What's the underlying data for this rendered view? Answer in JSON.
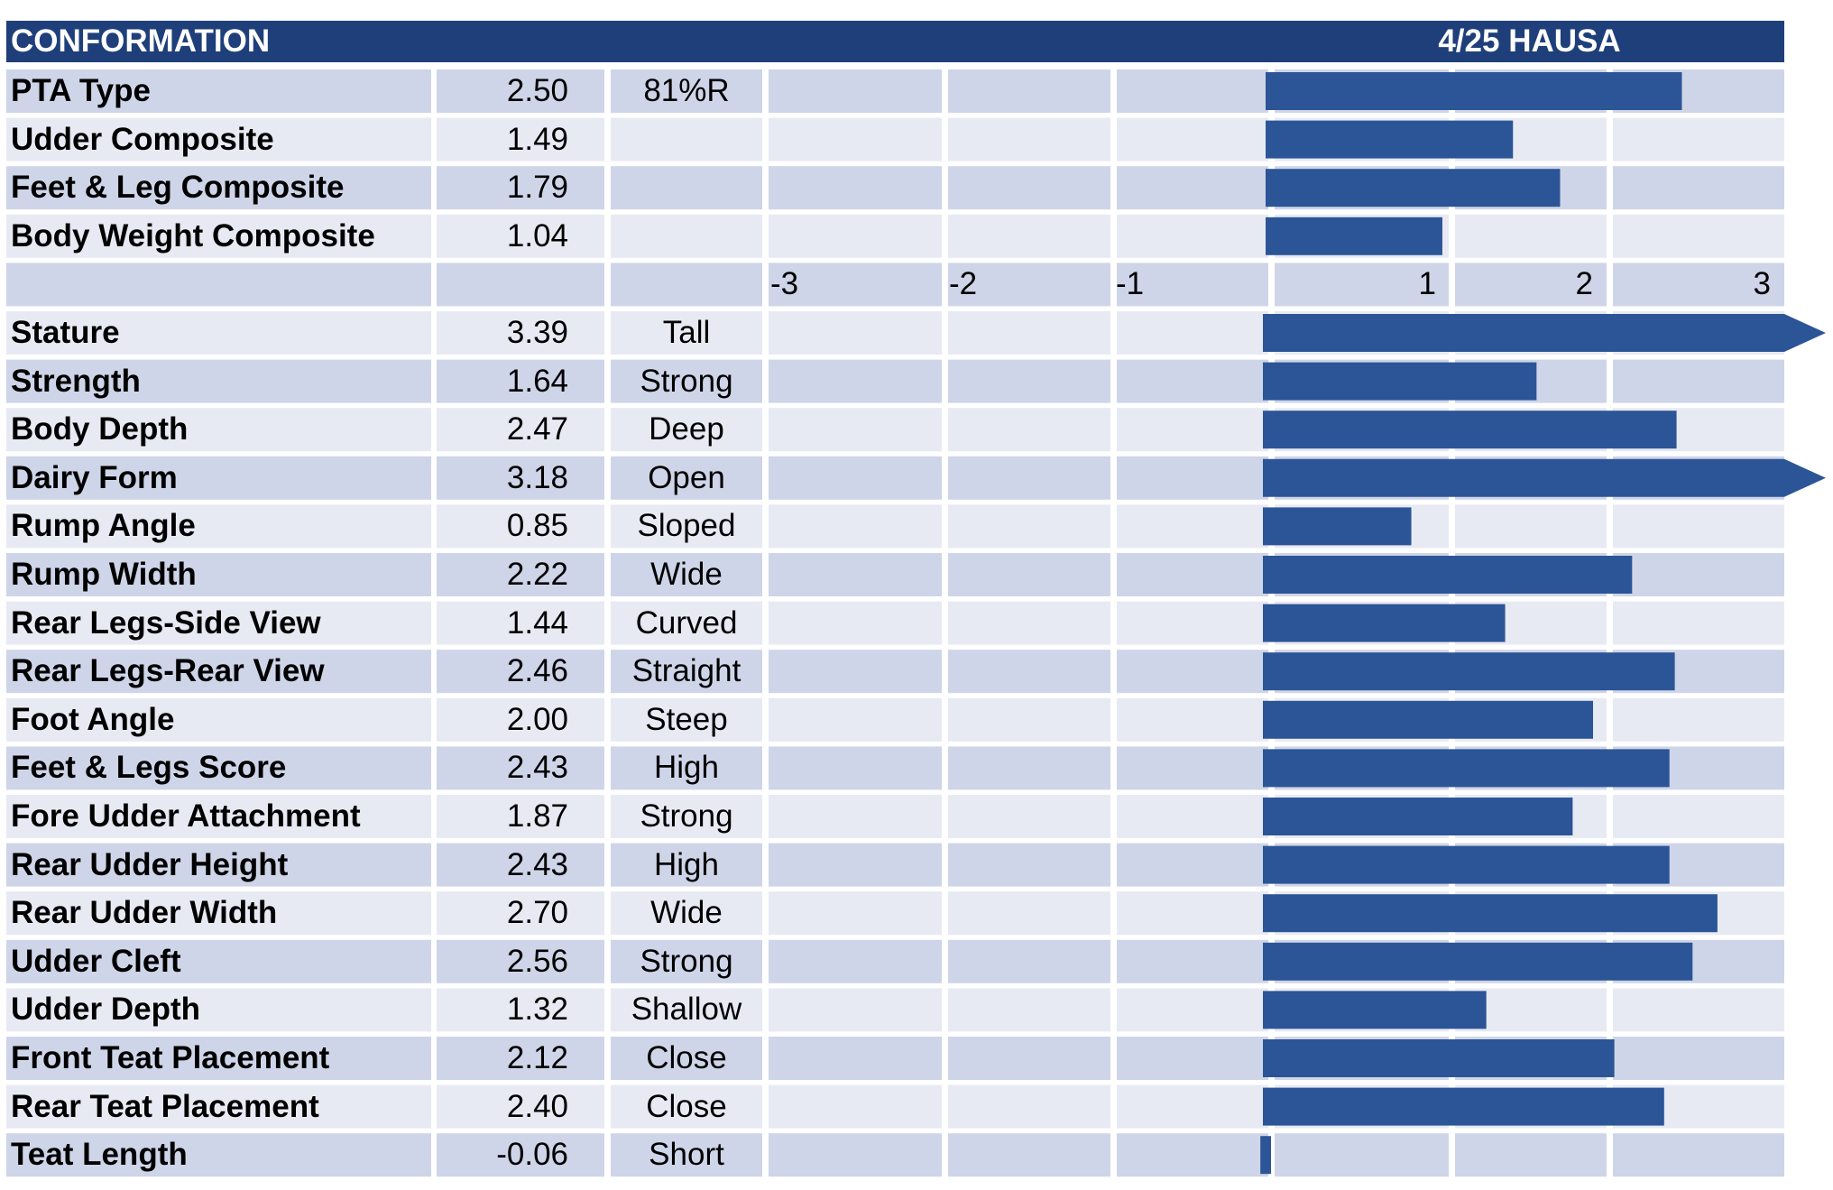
{
  "header": {
    "title": "CONFORMATION",
    "source": "4/25 HAUSA"
  },
  "colors": {
    "header_bg": "#1f3f7a",
    "row_dark": "#cfd5e8",
    "row_light": "#e8eaf3",
    "bar": "#2c5597"
  },
  "chart_data": {
    "type": "bar",
    "orientation": "horizontal",
    "xlim": [
      -3,
      3
    ],
    "axis_ticks": [
      "-3",
      "-2",
      "-1",
      "1",
      "2",
      "3"
    ],
    "summary_rows": [
      {
        "label": "PTA Type",
        "value_text": "2.50",
        "value": 2.5,
        "descriptor": "81%R"
      },
      {
        "label": "Udder Composite",
        "value_text": "1.49",
        "value": 1.49,
        "descriptor": ""
      },
      {
        "label": "Feet & Leg Composite",
        "value_text": "1.79",
        "value": 1.79,
        "descriptor": ""
      },
      {
        "label": "Body Weight Composite",
        "value_text": "1.04",
        "value": 1.04,
        "descriptor": ""
      }
    ],
    "trait_rows": [
      {
        "label": "Stature",
        "value_text": "3.39",
        "value": 3.39,
        "descriptor": "Tall"
      },
      {
        "label": "Strength",
        "value_text": "1.64",
        "value": 1.64,
        "descriptor": "Strong"
      },
      {
        "label": "Body Depth",
        "value_text": "2.47",
        "value": 2.47,
        "descriptor": "Deep"
      },
      {
        "label": "Dairy Form",
        "value_text": "3.18",
        "value": 3.18,
        "descriptor": "Open"
      },
      {
        "label": "Rump Angle",
        "value_text": "0.85",
        "value": 0.85,
        "descriptor": "Sloped"
      },
      {
        "label": "Rump Width",
        "value_text": "2.22",
        "value": 2.22,
        "descriptor": "Wide"
      },
      {
        "label": "Rear Legs-Side View",
        "value_text": "1.44",
        "value": 1.44,
        "descriptor": "Curved"
      },
      {
        "label": "Rear Legs-Rear View",
        "value_text": "2.46",
        "value": 2.46,
        "descriptor": "Straight"
      },
      {
        "label": "Foot Angle",
        "value_text": "2.00",
        "value": 2.0,
        "descriptor": "Steep"
      },
      {
        "label": "Feet & Legs Score",
        "value_text": "2.43",
        "value": 2.43,
        "descriptor": "High"
      },
      {
        "label": "Fore Udder Attachment",
        "value_text": "1.87",
        "value": 1.87,
        "descriptor": "Strong"
      },
      {
        "label": "Rear Udder Height",
        "value_text": "2.43",
        "value": 2.43,
        "descriptor": "High"
      },
      {
        "label": "Rear Udder Width",
        "value_text": "2.70",
        "value": 2.7,
        "descriptor": "Wide"
      },
      {
        "label": "Udder Cleft",
        "value_text": "2.56",
        "value": 2.56,
        "descriptor": "Strong"
      },
      {
        "label": "Udder Depth",
        "value_text": "1.32",
        "value": 1.32,
        "descriptor": "Shallow"
      },
      {
        "label": "Front Teat Placement",
        "value_text": "2.12",
        "value": 2.12,
        "descriptor": "Close"
      },
      {
        "label": "Rear Teat Placement",
        "value_text": "2.40",
        "value": 2.4,
        "descriptor": "Close"
      },
      {
        "label": "Teat Length",
        "value_text": "-0.06",
        "value": -0.06,
        "descriptor": "Short"
      }
    ]
  }
}
